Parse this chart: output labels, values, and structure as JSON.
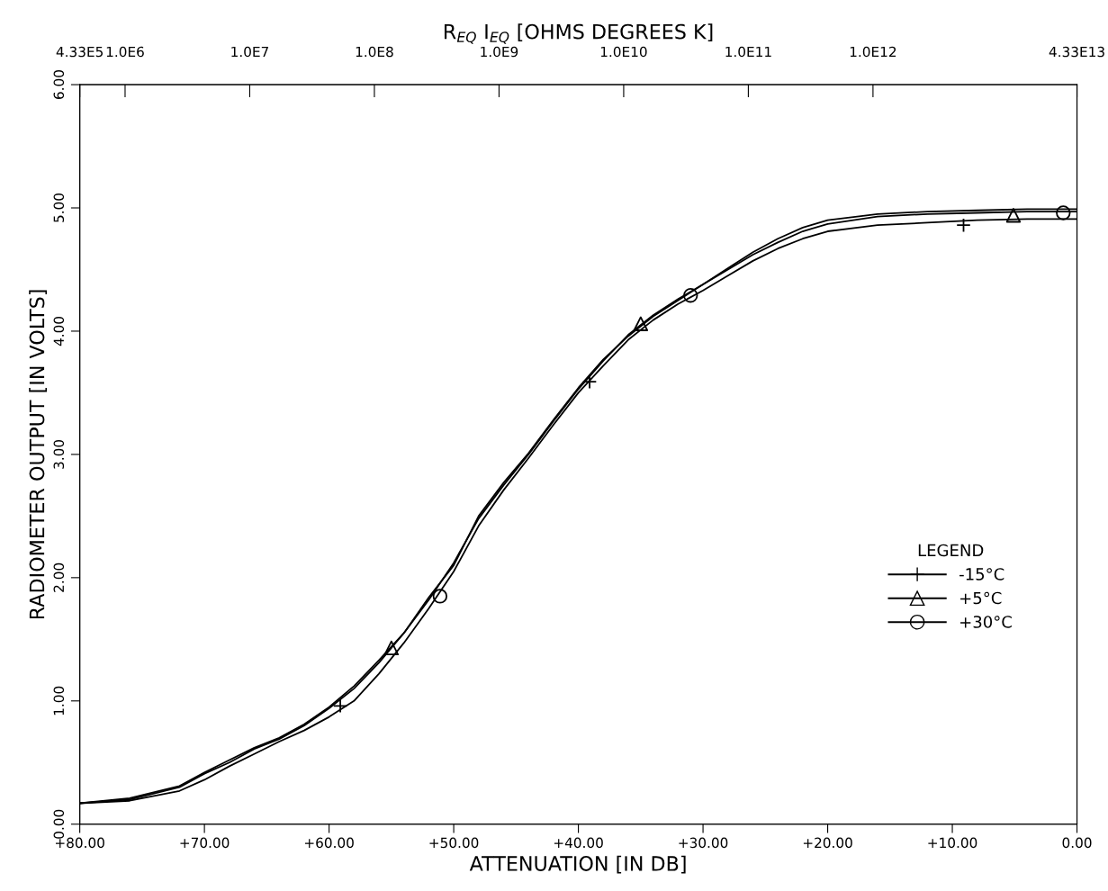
{
  "chart_data": {
    "type": "line",
    "x2label": "R$_{EQ}$ I$_{EQ}$ [OHMS DEGREES K]",
    "xlabel": "ATTENUATION [IN DB]",
    "ylabel": "RADIOMETER OUTPUT [IN VOLTS]",
    "legend_title": "LEGEND",
    "legend": "right",
    "grid": false,
    "line_style": "solid",
    "xlim": [
      80,
      0
    ],
    "xticks": [
      {
        "value": 80,
        "label": "+80.00"
      },
      {
        "value": 70,
        "label": "+70.00"
      },
      {
        "value": 60,
        "label": "+60.00"
      },
      {
        "value": 50,
        "label": "+50.00"
      },
      {
        "value": 40,
        "label": "+40.00"
      },
      {
        "value": 30,
        "label": "+30.00"
      },
      {
        "value": 20,
        "label": "+20.00"
      },
      {
        "value": 10,
        "label": "+10.00"
      },
      {
        "value": 0,
        "label": "0.00"
      }
    ],
    "ylim": [
      0,
      6
    ],
    "yticks": [
      {
        "value": 0,
        "label": "0.00"
      },
      {
        "value": 1,
        "label": "1.00"
      },
      {
        "value": 2,
        "label": "2.00"
      },
      {
        "value": 3,
        "label": "3.00"
      },
      {
        "value": 4,
        "label": "4.00"
      },
      {
        "value": 5,
        "label": "5.00"
      },
      {
        "value": 6,
        "label": "6.00"
      }
    ],
    "log": "x2",
    "x2lim": [
      433000,
      43300000000000
    ],
    "x2ticks": [
      {
        "value": 433000,
        "label": "4.33E5"
      },
      {
        "value": 1000000,
        "label": "1.0E6"
      },
      {
        "value": 10000000,
        "label": "1.0E7"
      },
      {
        "value": 100000000,
        "label": "1.0E8"
      },
      {
        "value": 1000000000,
        "label": "1.0E9"
      },
      {
        "value": 10000000000,
        "label": "1.0E10"
      },
      {
        "value": 100000000000,
        "label": "1.0E11"
      },
      {
        "value": 1000000000000,
        "label": "1.0E12"
      },
      {
        "value": 43300000000000,
        "label": "4.33E13"
      }
    ],
    "x": [
      80,
      76,
      72,
      70,
      68,
      66,
      64,
      62,
      60,
      58,
      56,
      54,
      52,
      50,
      48,
      46,
      44,
      42,
      40,
      38,
      36,
      34,
      32,
      30,
      28,
      26,
      24,
      22,
      20,
      16,
      12,
      8,
      4,
      0
    ],
    "series": [
      {
        "name": "-15°C",
        "color": "#000000",
        "values": [
          0.17,
          0.19,
          0.27,
          0.36,
          0.47,
          0.57,
          0.67,
          0.76,
          0.87,
          1.0,
          1.22,
          1.47,
          1.75,
          2.05,
          2.42,
          2.71,
          2.97,
          3.24,
          3.5,
          3.72,
          3.93,
          4.09,
          4.22,
          4.33,
          4.45,
          4.57,
          4.67,
          4.75,
          4.81,
          4.86,
          4.88,
          4.9,
          4.91,
          4.91
        ]
      },
      {
        "name": "+5°C",
        "color": "#000000",
        "values": [
          0.17,
          0.2,
          0.3,
          0.41,
          0.5,
          0.61,
          0.69,
          0.8,
          0.94,
          1.1,
          1.31,
          1.55,
          1.82,
          2.12,
          2.48,
          2.75,
          3.0,
          3.27,
          3.53,
          3.76,
          3.97,
          4.13,
          4.26,
          4.38,
          4.5,
          4.62,
          4.72,
          4.81,
          4.87,
          4.93,
          4.95,
          4.96,
          4.97,
          4.97
        ]
      },
      {
        "name": "+30°C",
        "color": "#000000",
        "values": [
          0.17,
          0.21,
          0.31,
          0.42,
          0.52,
          0.62,
          0.7,
          0.81,
          0.95,
          1.12,
          1.33,
          1.55,
          1.84,
          2.1,
          2.5,
          2.77,
          3.01,
          3.28,
          3.54,
          3.77,
          3.96,
          4.12,
          4.25,
          4.38,
          4.51,
          4.64,
          4.75,
          4.84,
          4.9,
          4.95,
          4.97,
          4.98,
          4.99,
          4.99
        ]
      },
      {
        "type": "scatter",
        "marker": "cross",
        "color": "#000000",
        "x": [
          59.1,
          39.1,
          9.1
        ],
        "values": [
          0.96,
          3.59,
          4.86
        ]
      },
      {
        "type": "scatter",
        "marker": "triangle",
        "color": "#000000",
        "x": [
          55.0,
          35.0,
          5.1
        ],
        "values": [
          1.43,
          4.06,
          4.94
        ]
      },
      {
        "type": "scatter",
        "marker": "circle",
        "color": "#000000",
        "x": [
          51.1,
          31.0,
          1.1
        ],
        "values": [
          1.85,
          4.29,
          4.96
        ]
      }
    ]
  }
}
